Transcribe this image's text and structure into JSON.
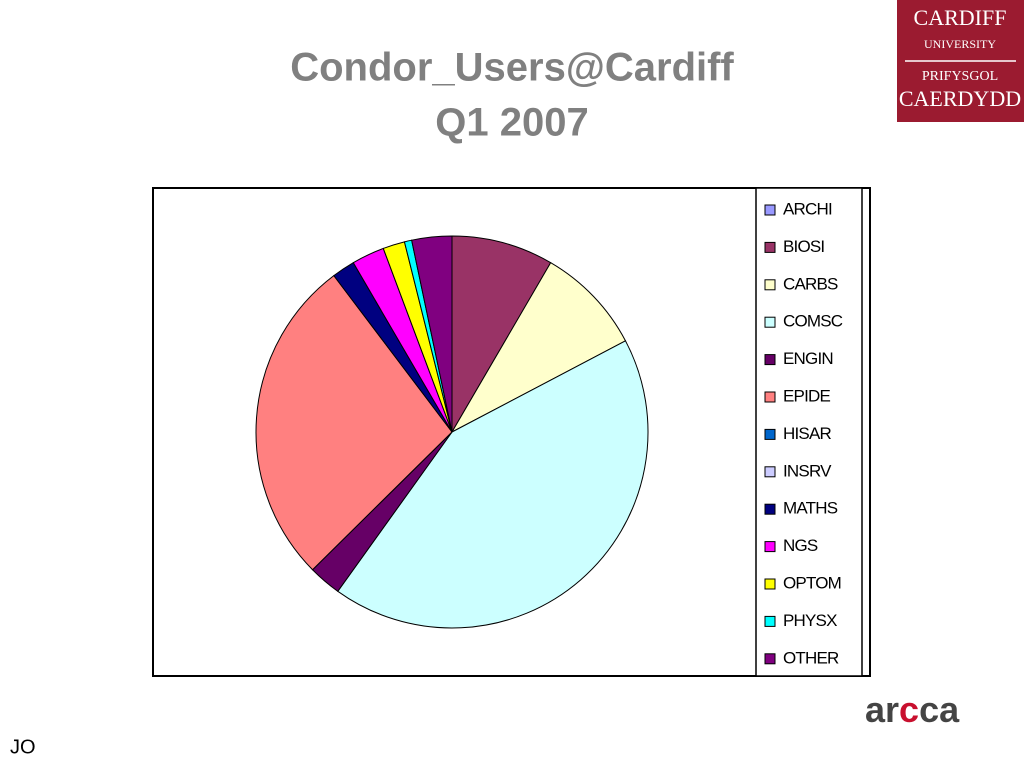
{
  "chart_data": {
    "type": "pie",
    "title": "Condor_Users@Cardiff",
    "subtitle": "Q1 2007",
    "categories": [
      "ARCHI",
      "BIOSI",
      "CARBS",
      "COMSC",
      "ENGIN",
      "EPIDE",
      "HISAR",
      "INSRV",
      "MATHS",
      "NGS",
      "OPTOM",
      "PHYSX",
      "OTHER"
    ],
    "values": [
      0,
      8.4,
      8.9,
      42.6,
      2.7,
      27.1,
      0,
      0,
      1.9,
      2.7,
      1.8,
      0.6,
      3.3
    ],
    "colors": [
      "#9999ff",
      "#993366",
      "#ffffcc",
      "#ccffff",
      "#660066",
      "#ff8080",
      "#0066cc",
      "#ccccff",
      "#000080",
      "#ff00ff",
      "#ffff00",
      "#00ffff",
      "#800080"
    ],
    "legend": "right"
  },
  "logo": {
    "line1": "CARDIFF",
    "line2": "UNIVERSITY",
    "line3": "PRIFYSGOL",
    "line4": "CAERDYDD"
  },
  "brand": {
    "part1": "ar",
    "part2": "c",
    "part3": "ca"
  },
  "footer": "JO"
}
